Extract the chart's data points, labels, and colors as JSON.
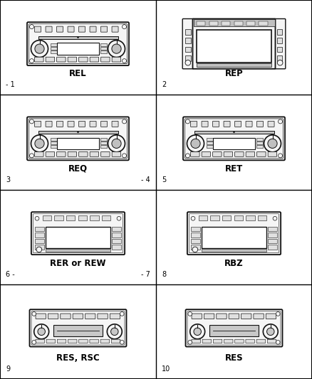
{
  "cells": [
    {
      "label": "REL",
      "num_tl": "- 1",
      "num_br": "",
      "row": 0,
      "col": 0,
      "type": "standard"
    },
    {
      "label": "REP",
      "num_tl": "2",
      "num_br": "",
      "row": 0,
      "col": 1,
      "type": "nav"
    },
    {
      "label": "REQ",
      "num_tl": "3",
      "num_br": "- 4",
      "row": 1,
      "col": 0,
      "type": "standard"
    },
    {
      "label": "RET",
      "num_tl": "5",
      "num_br": "",
      "row": 1,
      "col": 1,
      "type": "standard"
    },
    {
      "label": "RER or REW",
      "num_tl": "6 -",
      "num_br": "- 7",
      "row": 2,
      "col": 0,
      "type": "nav_small"
    },
    {
      "label": "RBZ",
      "num_tl": "8",
      "num_br": "",
      "row": 2,
      "col": 1,
      "type": "nav_small"
    },
    {
      "label": "RES, RSC",
      "num_tl": "9",
      "num_br": "",
      "row": 3,
      "col": 0,
      "type": "cassette"
    },
    {
      "label": "RES",
      "num_tl": "10",
      "num_br": "",
      "row": 3,
      "col": 1,
      "type": "cassette"
    }
  ],
  "bg_color": "#ffffff",
  "lc": "#000000",
  "rc": "#111111",
  "label_fontsize": 8.5,
  "num_fontsize": 7
}
